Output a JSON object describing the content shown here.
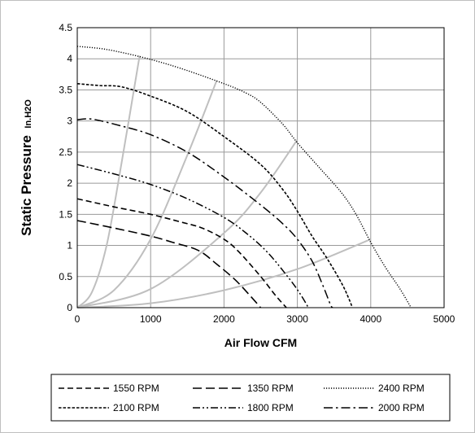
{
  "chart_data": {
    "type": "line",
    "title": "",
    "xlabel": "Air Flow CFM",
    "ylabel_main": "Static Pressure",
    "ylabel_unit": "In.H2O",
    "xlim": [
      0,
      5000
    ],
    "ylim": [
      0,
      4.5
    ],
    "x_ticks": [
      0,
      1000,
      2000,
      3000,
      4000,
      5000
    ],
    "y_ticks": [
      0,
      0.5,
      1,
      1.5,
      2,
      2.5,
      3,
      3.5,
      4,
      4.5
    ],
    "x_tick_labels": [
      "0",
      "1000",
      "2000",
      "3000",
      "4000",
      "5000"
    ],
    "y_tick_labels": [
      "0",
      "0.5",
      "1",
      "1.5",
      "2",
      "2.5",
      "3",
      "3.5",
      "4",
      "4.5"
    ],
    "grid": true,
    "legend_position": "bottom",
    "series": [
      {
        "name": "1550 RPM",
        "dash": "medium-dash",
        "color": "#000000",
        "points": [
          [
            0,
            1.75
          ],
          [
            500,
            1.62
          ],
          [
            1000,
            1.5
          ],
          [
            1400,
            1.38
          ],
          [
            1700,
            1.28
          ],
          [
            2000,
            1.1
          ],
          [
            2200,
            0.9
          ],
          [
            2500,
            0.5
          ],
          [
            2700,
            0.2
          ],
          [
            2850,
            0
          ]
        ]
      },
      {
        "name": "1350 RPM",
        "dash": "long-dash",
        "color": "#000000",
        "points": [
          [
            0,
            1.4
          ],
          [
            500,
            1.28
          ],
          [
            1000,
            1.15
          ],
          [
            1300,
            1.05
          ],
          [
            1650,
            0.92
          ],
          [
            1900,
            0.7
          ],
          [
            2150,
            0.45
          ],
          [
            2350,
            0.2
          ],
          [
            2500,
            0
          ]
        ]
      },
      {
        "name": "2400 RPM",
        "dash": "dotted",
        "color": "#000000",
        "points": [
          [
            0,
            4.2
          ],
          [
            400,
            4.15
          ],
          [
            900,
            4.02
          ],
          [
            1400,
            3.85
          ],
          [
            2000,
            3.6
          ],
          [
            2300,
            3.45
          ],
          [
            2500,
            3.3
          ],
          [
            2800,
            2.95
          ],
          [
            3000,
            2.65
          ],
          [
            3300,
            2.25
          ],
          [
            3600,
            1.85
          ],
          [
            3800,
            1.5
          ],
          [
            4000,
            1.05
          ],
          [
            4200,
            0.65
          ],
          [
            4400,
            0.3
          ],
          [
            4550,
            0
          ]
        ]
      },
      {
        "name": "2100 RPM",
        "dash": "short-dash",
        "color": "#000000",
        "points": [
          [
            0,
            3.6
          ],
          [
            300,
            3.57
          ],
          [
            600,
            3.55
          ],
          [
            1000,
            3.4
          ],
          [
            1500,
            3.15
          ],
          [
            2000,
            2.75
          ],
          [
            2500,
            2.3
          ],
          [
            2800,
            1.9
          ],
          [
            3000,
            1.55
          ],
          [
            3200,
            1.15
          ],
          [
            3400,
            0.8
          ],
          [
            3600,
            0.4
          ],
          [
            3700,
            0.15
          ],
          [
            3750,
            0
          ]
        ]
      },
      {
        "name": "1800 RPM",
        "dash": "dash-dot-dot",
        "color": "#000000",
        "points": [
          [
            0,
            2.3
          ],
          [
            500,
            2.15
          ],
          [
            1000,
            1.98
          ],
          [
            1500,
            1.75
          ],
          [
            2000,
            1.45
          ],
          [
            2300,
            1.2
          ],
          [
            2600,
            0.88
          ],
          [
            2900,
            0.45
          ],
          [
            3050,
            0.2
          ],
          [
            3150,
            0
          ]
        ]
      },
      {
        "name": "2000 RPM",
        "dash": "dash-dot",
        "color": "#000000",
        "points": [
          [
            0,
            3.02
          ],
          [
            200,
            3.03
          ],
          [
            600,
            2.92
          ],
          [
            1000,
            2.78
          ],
          [
            1500,
            2.5
          ],
          [
            2000,
            2.1
          ],
          [
            2500,
            1.65
          ],
          [
            2800,
            1.35
          ],
          [
            3000,
            1.1
          ],
          [
            3200,
            0.75
          ],
          [
            3350,
            0.35
          ],
          [
            3450,
            0.05
          ],
          [
            3480,
            0
          ]
        ]
      }
    ],
    "system_curves": {
      "color": "#bfbfbf",
      "curves": [
        {
          "points": [
            [
              0,
              0
            ],
            [
              200,
              0.25
            ],
            [
              400,
              1.0
            ],
            [
              600,
              2.3
            ],
            [
              850,
              4.05
            ]
          ]
        },
        {
          "points": [
            [
              0,
              0
            ],
            [
              500,
              0.28
            ],
            [
              1000,
              1.1
            ],
            [
              1500,
              2.45
            ],
            [
              1900,
              3.65
            ]
          ]
        },
        {
          "points": [
            [
              0,
              0
            ],
            [
              1000,
              0.3
            ],
            [
              2000,
              1.2
            ],
            [
              2500,
              1.85
            ],
            [
              3000,
              2.7
            ]
          ]
        },
        {
          "points": [
            [
              0,
              0
            ],
            [
              1000,
              0.07
            ],
            [
              2000,
              0.28
            ],
            [
              3000,
              0.62
            ],
            [
              4000,
              1.1
            ]
          ]
        }
      ]
    }
  }
}
